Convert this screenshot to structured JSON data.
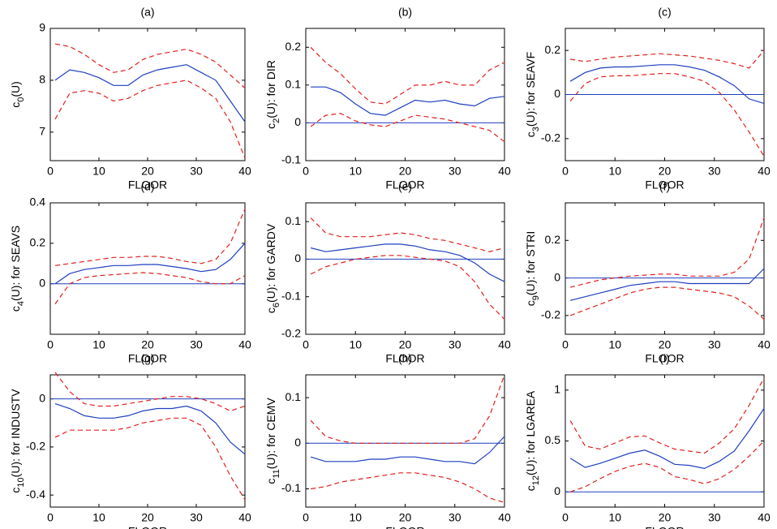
{
  "chart_data": [
    {
      "type": "line",
      "title": "(a)",
      "xlabel": "FLOOR",
      "ylabel": [
        "c",
        "0",
        "(U)"
      ],
      "xlim": [
        0,
        40
      ],
      "xticks": [
        0,
        10,
        20,
        30,
        40
      ],
      "ylim": [
        6.45,
        9
      ],
      "yticks": [
        7,
        8,
        9
      ],
      "x": [
        1,
        4,
        7,
        10,
        13,
        16,
        19,
        22,
        25,
        28,
        31,
        34,
        37,
        40
      ],
      "series": [
        {
          "color": "#1f3fbf",
          "style": "solid",
          "values": [
            8.0,
            8.2,
            8.15,
            8.05,
            7.9,
            7.9,
            8.1,
            8.2,
            8.25,
            8.3,
            8.15,
            8.0,
            7.6,
            7.2
          ]
        },
        {
          "color": "#e0201b",
          "style": "dashed",
          "values": [
            8.7,
            8.65,
            8.5,
            8.3,
            8.15,
            8.2,
            8.4,
            8.5,
            8.55,
            8.6,
            8.5,
            8.35,
            8.1,
            7.85
          ]
        },
        {
          "color": "#e0201b",
          "style": "dashed",
          "values": [
            7.25,
            7.75,
            7.8,
            7.75,
            7.6,
            7.65,
            7.8,
            7.9,
            7.95,
            8.0,
            7.85,
            7.65,
            7.2,
            6.5
          ]
        }
      ]
    },
    {
      "type": "line",
      "title": "(b)",
      "xlabel": "FLOOR",
      "ylabel": [
        "c",
        "2",
        "(U): for DIR"
      ],
      "xlim": [
        0,
        40
      ],
      "xticks": [
        0,
        10,
        20,
        30,
        40
      ],
      "ylim": [
        -0.1,
        0.25
      ],
      "yticks": [
        -0.1,
        0,
        0.1,
        0.2
      ],
      "hline": 0,
      "x": [
        1,
        4,
        7,
        10,
        13,
        16,
        19,
        22,
        25,
        28,
        31,
        34,
        37,
        40
      ],
      "series": [
        {
          "color": "#1f3fbf",
          "style": "solid",
          "values": [
            0.095,
            0.095,
            0.08,
            0.05,
            0.025,
            0.02,
            0.04,
            0.06,
            0.055,
            0.06,
            0.05,
            0.045,
            0.065,
            0.07
          ]
        },
        {
          "color": "#e0201b",
          "style": "dashed",
          "values": [
            0.2,
            0.16,
            0.13,
            0.09,
            0.055,
            0.05,
            0.075,
            0.1,
            0.1,
            0.11,
            0.1,
            0.1,
            0.14,
            0.16
          ]
        },
        {
          "color": "#e0201b",
          "style": "dashed",
          "values": [
            -0.01,
            0.02,
            0.025,
            0.005,
            -0.005,
            -0.01,
            0.005,
            0.02,
            0.015,
            0.01,
            0.0,
            -0.01,
            -0.02,
            -0.05
          ]
        }
      ]
    },
    {
      "type": "line",
      "title": "(c)",
      "xlabel": "FLOOR",
      "ylabel": [
        "c",
        "3",
        "(U): for SEAVF"
      ],
      "xlim": [
        0,
        40
      ],
      "xticks": [
        0,
        10,
        20,
        30,
        40
      ],
      "ylim": [
        -0.3,
        0.3
      ],
      "yticks": [
        -0.2,
        0,
        0.2
      ],
      "hline": 0,
      "x": [
        1,
        4,
        7,
        10,
        13,
        16,
        19,
        22,
        25,
        28,
        31,
        34,
        37,
        40
      ],
      "series": [
        {
          "color": "#1f3fbf",
          "style": "solid",
          "values": [
            0.06,
            0.1,
            0.12,
            0.125,
            0.125,
            0.13,
            0.135,
            0.135,
            0.125,
            0.11,
            0.08,
            0.04,
            -0.02,
            -0.04
          ]
        },
        {
          "color": "#e0201b",
          "style": "dashed",
          "values": [
            0.16,
            0.15,
            0.16,
            0.17,
            0.175,
            0.18,
            0.185,
            0.18,
            0.175,
            0.165,
            0.155,
            0.14,
            0.12,
            0.2
          ]
        },
        {
          "color": "#e0201b",
          "style": "dashed",
          "values": [
            -0.03,
            0.05,
            0.08,
            0.085,
            0.085,
            0.09,
            0.095,
            0.095,
            0.08,
            0.06,
            0.01,
            -0.07,
            -0.17,
            -0.28
          ]
        }
      ]
    },
    {
      "type": "line",
      "title": "(d)",
      "xlabel": "FLOOR",
      "ylabel": [
        "c",
        "4",
        "(U): for SEAVS"
      ],
      "xlim": [
        0,
        40
      ],
      "xticks": [
        0,
        10,
        20,
        30,
        40
      ],
      "ylim": [
        -0.25,
        0.4
      ],
      "yticks": [
        0,
        0.2,
        0.4
      ],
      "hline": 0,
      "x": [
        1,
        4,
        7,
        10,
        13,
        16,
        19,
        22,
        25,
        28,
        31,
        34,
        37,
        40
      ],
      "series": [
        {
          "color": "#1f3fbf",
          "style": "solid",
          "values": [
            0.0,
            0.05,
            0.07,
            0.08,
            0.09,
            0.09,
            0.095,
            0.095,
            0.085,
            0.075,
            0.06,
            0.07,
            0.12,
            0.2
          ]
        },
        {
          "color": "#e0201b",
          "style": "dashed",
          "values": [
            0.09,
            0.1,
            0.11,
            0.12,
            0.13,
            0.13,
            0.135,
            0.135,
            0.125,
            0.11,
            0.1,
            0.12,
            0.2,
            0.37
          ]
        },
        {
          "color": "#e0201b",
          "style": "dashed",
          "values": [
            -0.1,
            0.0,
            0.03,
            0.04,
            0.045,
            0.05,
            0.055,
            0.05,
            0.04,
            0.03,
            0.01,
            0.0,
            0.0,
            0.04
          ]
        }
      ]
    },
    {
      "type": "line",
      "title": "(e)",
      "xlabel": "FLOOR",
      "ylabel": [
        "c",
        "6",
        "(U): for GARDV"
      ],
      "xlim": [
        0,
        40
      ],
      "xticks": [
        0,
        10,
        20,
        30,
        40
      ],
      "ylim": [
        -0.2,
        0.15
      ],
      "yticks": [
        -0.2,
        -0.1,
        0,
        0.1
      ],
      "hline": 0,
      "x": [
        1,
        4,
        7,
        10,
        13,
        16,
        19,
        22,
        25,
        28,
        31,
        34,
        37,
        40
      ],
      "series": [
        {
          "color": "#1f3fbf",
          "style": "solid",
          "values": [
            0.03,
            0.02,
            0.025,
            0.03,
            0.035,
            0.04,
            0.04,
            0.035,
            0.025,
            0.02,
            0.01,
            -0.01,
            -0.04,
            -0.06
          ]
        },
        {
          "color": "#e0201b",
          "style": "dashed",
          "values": [
            0.11,
            0.07,
            0.06,
            0.06,
            0.06,
            0.065,
            0.07,
            0.065,
            0.055,
            0.05,
            0.04,
            0.03,
            0.02,
            0.03
          ]
        },
        {
          "color": "#e0201b",
          "style": "dashed",
          "values": [
            -0.04,
            -0.02,
            -0.01,
            0.0,
            0.005,
            0.01,
            0.01,
            0.005,
            0.0,
            -0.005,
            -0.02,
            -0.06,
            -0.12,
            -0.16
          ]
        }
      ]
    },
    {
      "type": "line",
      "title": "(f)",
      "xlabel": "FLOOR",
      "ylabel": [
        "c",
        "9",
        "(U): for STRI"
      ],
      "xlim": [
        0,
        40
      ],
      "xticks": [
        0,
        10,
        20,
        30,
        40
      ],
      "ylim": [
        -0.3,
        0.4
      ],
      "yticks": [
        -0.2,
        0,
        0.2
      ],
      "hline": 0,
      "x": [
        1,
        4,
        7,
        10,
        13,
        16,
        19,
        22,
        25,
        28,
        31,
        34,
        37,
        40
      ],
      "series": [
        {
          "color": "#1f3fbf",
          "style": "solid",
          "values": [
            -0.12,
            -0.1,
            -0.08,
            -0.06,
            -0.04,
            -0.03,
            -0.02,
            -0.02,
            -0.03,
            -0.03,
            -0.03,
            -0.03,
            -0.03,
            0.05
          ]
        },
        {
          "color": "#e0201b",
          "style": "dashed",
          "values": [
            -0.05,
            -0.03,
            -0.01,
            0.0,
            0.01,
            0.015,
            0.02,
            0.02,
            0.01,
            0.01,
            0.01,
            0.03,
            0.1,
            0.32
          ]
        },
        {
          "color": "#e0201b",
          "style": "dashed",
          "values": [
            -0.2,
            -0.17,
            -0.14,
            -0.11,
            -0.08,
            -0.06,
            -0.05,
            -0.05,
            -0.06,
            -0.07,
            -0.08,
            -0.1,
            -0.15,
            -0.22
          ]
        }
      ]
    },
    {
      "type": "line",
      "title": "(g)",
      "xlabel": "FLOOR",
      "ylabel": [
        "c",
        "10",
        "(U): for INDUSTV"
      ],
      "xlim": [
        0,
        40
      ],
      "xticks": [
        0,
        10,
        20,
        30,
        40
      ],
      "ylim": [
        -0.45,
        0.1
      ],
      "yticks": [
        -0.4,
        -0.2,
        0
      ],
      "hline": 0,
      "x": [
        1,
        4,
        7,
        10,
        13,
        16,
        19,
        22,
        25,
        28,
        31,
        34,
        37,
        40
      ],
      "series": [
        {
          "color": "#1f3fbf",
          "style": "solid",
          "values": [
            -0.02,
            -0.04,
            -0.07,
            -0.08,
            -0.08,
            -0.07,
            -0.05,
            -0.04,
            -0.04,
            -0.03,
            -0.05,
            -0.1,
            -0.18,
            -0.23
          ]
        },
        {
          "color": "#e0201b",
          "style": "dashed",
          "values": [
            0.11,
            0.03,
            -0.02,
            -0.03,
            -0.03,
            -0.02,
            -0.01,
            0.0,
            0.01,
            0.01,
            0.0,
            -0.02,
            -0.05,
            -0.03
          ]
        },
        {
          "color": "#e0201b",
          "style": "dashed",
          "values": [
            -0.16,
            -0.13,
            -0.13,
            -0.13,
            -0.13,
            -0.12,
            -0.1,
            -0.09,
            -0.08,
            -0.08,
            -0.11,
            -0.2,
            -0.32,
            -0.42
          ]
        }
      ]
    },
    {
      "type": "line",
      "title": "(h)",
      "xlabel": "FLOOR",
      "ylabel": [
        "c",
        "11",
        "(U): for CEMV"
      ],
      "xlim": [
        0,
        40
      ],
      "xticks": [
        0,
        10,
        20,
        30,
        40
      ],
      "ylim": [
        -0.14,
        0.15
      ],
      "yticks": [
        -0.1,
        0,
        0.1
      ],
      "hline": 0,
      "x": [
        1,
        4,
        7,
        10,
        13,
        16,
        19,
        22,
        25,
        28,
        31,
        34,
        37,
        40
      ],
      "series": [
        {
          "color": "#1f3fbf",
          "style": "solid",
          "values": [
            -0.03,
            -0.04,
            -0.04,
            -0.04,
            -0.035,
            -0.035,
            -0.03,
            -0.03,
            -0.035,
            -0.04,
            -0.04,
            -0.045,
            -0.02,
            0.015
          ]
        },
        {
          "color": "#e0201b",
          "style": "dashed",
          "values": [
            0.05,
            0.015,
            0.005,
            0.0,
            0.0,
            0.0,
            0.0,
            0.0,
            0.0,
            0.0,
            0.0,
            0.01,
            0.06,
            0.15
          ]
        },
        {
          "color": "#e0201b",
          "style": "dashed",
          "values": [
            -0.1,
            -0.095,
            -0.085,
            -0.08,
            -0.075,
            -0.07,
            -0.065,
            -0.065,
            -0.07,
            -0.075,
            -0.085,
            -0.1,
            -0.12,
            -0.13
          ]
        }
      ]
    },
    {
      "type": "line",
      "title": "(i)",
      "xlabel": "FLOOR",
      "ylabel": [
        "c",
        "12",
        "(U): for LGAREA"
      ],
      "xlim": [
        0,
        40
      ],
      "xticks": [
        0,
        10,
        20,
        30,
        40
      ],
      "ylim": [
        -0.15,
        1.15
      ],
      "yticks": [
        0,
        0.5,
        1
      ],
      "hline": 0,
      "x": [
        1,
        4,
        7,
        10,
        13,
        16,
        19,
        22,
        25,
        28,
        31,
        34,
        37,
        40
      ],
      "series": [
        {
          "color": "#1f3fbf",
          "style": "solid",
          "values": [
            0.33,
            0.24,
            0.28,
            0.33,
            0.38,
            0.41,
            0.35,
            0.27,
            0.26,
            0.23,
            0.3,
            0.4,
            0.6,
            0.82
          ]
        },
        {
          "color": "#e0201b",
          "style": "dashed",
          "values": [
            0.7,
            0.45,
            0.42,
            0.48,
            0.54,
            0.55,
            0.48,
            0.42,
            0.4,
            0.38,
            0.48,
            0.62,
            0.85,
            1.12
          ]
        },
        {
          "color": "#e0201b",
          "style": "dashed",
          "values": [
            0.0,
            0.05,
            0.13,
            0.2,
            0.25,
            0.28,
            0.24,
            0.15,
            0.12,
            0.08,
            0.13,
            0.22,
            0.35,
            0.5
          ]
        }
      ]
    }
  ]
}
